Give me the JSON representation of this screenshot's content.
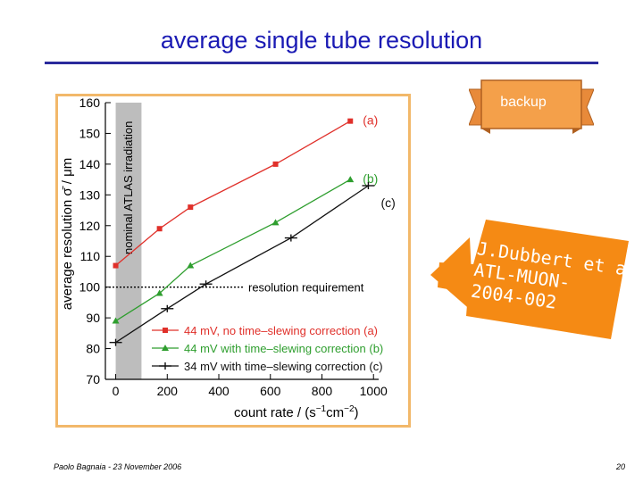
{
  "slide": {
    "title": "average single tube resolution",
    "badge_label": "backup",
    "reference_lines": [
      "J.Dubbert et al.,",
      "ATL-MUON-",
      "2004-002"
    ],
    "footer_left": "Paolo Bagnaia - 23 November 2006",
    "footer_right": "20",
    "colors": {
      "title": "#1a1ab4",
      "badge": "#f4a04a",
      "callout": "#f58a14",
      "frame": "#f2b86a"
    }
  },
  "chart_data": {
    "type": "line",
    "xlabel": "count rate",
    "xunit_text": "(s",
    "xunit_exp1": "−1",
    "xunit_mid": "cm",
    "xunit_exp2": "−2",
    "xunit_close": ")",
    "ylabel": "average resolution",
    "ysymbol": "σ̄",
    "yunit": "μm",
    "xlim": [
      -40,
      1020
    ],
    "ylim": [
      70,
      160
    ],
    "xticks": [
      "0",
      "200",
      "400",
      "600",
      "800",
      "1000"
    ],
    "yticks": [
      "70",
      "80",
      "90",
      "100",
      "110",
      "120",
      "130",
      "140",
      "150",
      "160"
    ],
    "shaded_band_label": "nominal ATLAS irradiation",
    "shaded_band_x": [
      0,
      100
    ],
    "threshold": {
      "y": 100,
      "label": "resolution requirement"
    },
    "series": [
      {
        "name": "44 mV, no time–slewing correction (a)",
        "tag": "(a)",
        "color": "#e0302a",
        "marker": "square",
        "x": [
          0,
          170,
          290,
          620,
          910
        ],
        "y": [
          107,
          119,
          126,
          140,
          154
        ]
      },
      {
        "name": "44 mV with time–slewing correction (b)",
        "tag": "(b)",
        "color": "#2e9e2e",
        "marker": "triangle",
        "x": [
          0,
          170,
          290,
          620,
          910
        ],
        "y": [
          89,
          98,
          107,
          121,
          135
        ]
      },
      {
        "name": "34 mV with time–slewing correction (c)",
        "tag": "(c)",
        "color": "#111111",
        "marker": "plus",
        "x": [
          0,
          200,
          350,
          680,
          980
        ],
        "y": [
          82,
          93,
          101,
          116,
          133
        ]
      }
    ]
  }
}
